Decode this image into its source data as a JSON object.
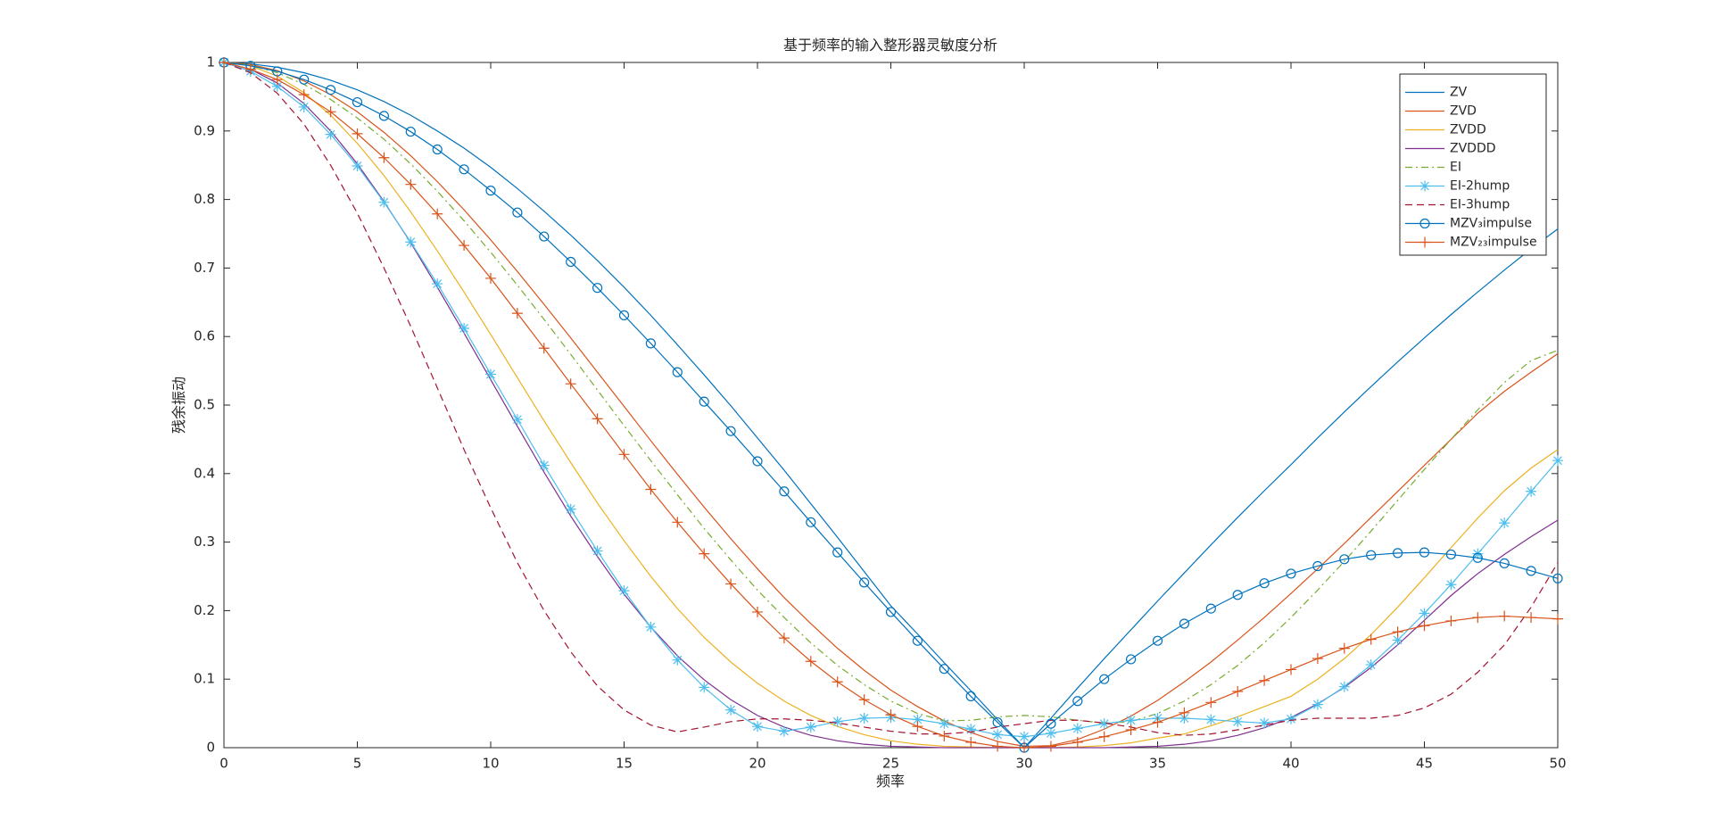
{
  "chart_data": {
    "type": "line",
    "title": "基于频率的输入整形器灵敏度分析",
    "xlabel": "频率",
    "ylabel": "残余振动",
    "x": [
      0,
      1,
      2,
      3,
      4,
      5,
      6,
      7,
      8,
      9,
      10,
      11,
      12,
      13,
      14,
      15,
      16,
      17,
      18,
      19,
      20,
      21,
      22,
      23,
      24,
      25,
      26,
      27,
      28,
      29,
      30,
      31,
      32,
      33,
      34,
      35,
      36,
      37,
      38,
      39,
      40,
      41,
      42,
      43,
      44,
      45,
      46,
      47,
      48,
      49,
      50
    ],
    "xlim": [
      0,
      50
    ],
    "xticks": [
      0,
      5,
      10,
      15,
      20,
      25,
      30,
      35,
      40,
      45,
      50
    ],
    "ylim": [
      0,
      1
    ],
    "yticks": [
      0,
      0.1,
      0.2,
      0.3,
      0.4,
      0.5,
      0.6,
      0.7,
      0.8,
      0.9,
      1
    ],
    "grid": false,
    "legend": "upper right",
    "series": [
      {
        "name": "ZV",
        "color": "#0072BD",
        "dash": "solid",
        "values": [
          1,
          0.998,
          0.993,
          0.985,
          0.974,
          0.96,
          0.943,
          0.923,
          0.9,
          0.875,
          0.847,
          0.816,
          0.783,
          0.748,
          0.711,
          0.672,
          0.631,
          0.588,
          0.544,
          0.499,
          0.452,
          0.405,
          0.356,
          0.307,
          0.257,
          0.207,
          0.166,
          0.124,
          0.083,
          0.041,
          0,
          0.043,
          0.087,
          0.13,
          0.172,
          0.214,
          0.255,
          0.296,
          0.336,
          0.375,
          0.413,
          0.452,
          0.49,
          0.527,
          0.563,
          0.598,
          0.632,
          0.665,
          0.697,
          0.728,
          0.757
        ]
      },
      {
        "name": "ZVD",
        "color": "#D95319",
        "dash": "solid",
        "values": [
          1,
          0.997,
          0.988,
          0.973,
          0.953,
          0.928,
          0.898,
          0.864,
          0.826,
          0.785,
          0.741,
          0.695,
          0.647,
          0.598,
          0.548,
          0.498,
          0.448,
          0.399,
          0.351,
          0.305,
          0.261,
          0.219,
          0.181,
          0.145,
          0.113,
          0.084,
          0.06,
          0.039,
          0.022,
          0.009,
          0.002,
          0.003,
          0.012,
          0.027,
          0.046,
          0.069,
          0.096,
          0.125,
          0.157,
          0.19,
          0.225,
          0.261,
          0.298,
          0.336,
          0.374,
          0.412,
          0.45,
          0.488,
          0.52,
          0.548,
          0.575
        ]
      },
      {
        "name": "ZVDD",
        "color": "#EDB120",
        "dash": "solid",
        "values": [
          1,
          0.995,
          0.98,
          0.956,
          0.923,
          0.882,
          0.835,
          0.782,
          0.725,
          0.665,
          0.603,
          0.54,
          0.477,
          0.416,
          0.357,
          0.302,
          0.25,
          0.203,
          0.161,
          0.125,
          0.094,
          0.068,
          0.047,
          0.031,
          0.019,
          0.01,
          0.005,
          0.002,
          0.001,
          0,
          0,
          0,
          0.001,
          0.003,
          0.007,
          0.014,
          0.02,
          0.032,
          0.045,
          0.06,
          0.075,
          0.1,
          0.13,
          0.165,
          0.205,
          0.248,
          0.292,
          0.335,
          0.375,
          0.408,
          0.435
        ]
      },
      {
        "name": "ZVDDD",
        "color": "#7E2F8E",
        "dash": "solid",
        "values": [
          1,
          0.99,
          0.97,
          0.94,
          0.9,
          0.852,
          0.797,
          0.737,
          0.672,
          0.605,
          0.537,
          0.469,
          0.402,
          0.338,
          0.279,
          0.224,
          0.176,
          0.134,
          0.099,
          0.07,
          0.047,
          0.03,
          0.018,
          0.01,
          0.005,
          0.002,
          0.001,
          0,
          0,
          0,
          0,
          0,
          0,
          0,
          0.001,
          0.002,
          0.005,
          0.01,
          0.018,
          0.029,
          0.044,
          0.064,
          0.088,
          0.117,
          0.15,
          0.186,
          0.222,
          0.254,
          0.282,
          0.308,
          0.332
        ]
      },
      {
        "name": "EI",
        "color": "#77AC30",
        "dash": "dashdot",
        "values": [
          1,
          0.996,
          0.985,
          0.968,
          0.946,
          0.919,
          0.888,
          0.852,
          0.812,
          0.769,
          0.723,
          0.675,
          0.625,
          0.574,
          0.522,
          0.47,
          0.419,
          0.369,
          0.32,
          0.274,
          0.23,
          0.19,
          0.153,
          0.12,
          0.092,
          0.068,
          0.05,
          0.039,
          0.04,
          0.045,
          0.047,
          0.045,
          0.04,
          0.036,
          0.038,
          0.05,
          0.068,
          0.092,
          0.12,
          0.153,
          0.19,
          0.23,
          0.272,
          0.316,
          0.361,
          0.406,
          0.45,
          0.493,
          0.533,
          0.565,
          0.58
        ]
      },
      {
        "name": "EI-2hump",
        "color": "#4DBEEE",
        "dash": "solid",
        "marker": "star",
        "values": [
          1,
          0.987,
          0.965,
          0.935,
          0.895,
          0.849,
          0.796,
          0.738,
          0.677,
          0.612,
          0.545,
          0.479,
          0.412,
          0.348,
          0.287,
          0.229,
          0.176,
          0.128,
          0.088,
          0.055,
          0.031,
          0.024,
          0.03,
          0.038,
          0.043,
          0.044,
          0.041,
          0.035,
          0.027,
          0.019,
          0.016,
          0.021,
          0.028,
          0.035,
          0.04,
          0.043,
          0.043,
          0.041,
          0.038,
          0.036,
          0.042,
          0.063,
          0.089,
          0.121,
          0.157,
          0.196,
          0.238,
          0.283,
          0.328,
          0.374,
          0.419
        ]
      },
      {
        "name": "EI-3hump",
        "color": "#A2142F",
        "dash": "dashed",
        "values": [
          1,
          0.985,
          0.955,
          0.91,
          0.85,
          0.78,
          0.7,
          0.615,
          0.525,
          0.435,
          0.35,
          0.27,
          0.2,
          0.14,
          0.09,
          0.055,
          0.033,
          0.023,
          0.03,
          0.038,
          0.042,
          0.042,
          0.04,
          0.036,
          0.03,
          0.024,
          0.02,
          0.02,
          0.023,
          0.03,
          0.035,
          0.04,
          0.04,
          0.036,
          0.03,
          0.022,
          0.018,
          0.02,
          0.026,
          0.033,
          0.04,
          0.043,
          0.043,
          0.043,
          0.047,
          0.058,
          0.078,
          0.11,
          0.15,
          0.205,
          0.27
        ]
      },
      {
        "name": "MZV₃impulse",
        "color": "#0072BD",
        "dash": "solid",
        "marker": "circle",
        "values": [
          1,
          0.995,
          0.987,
          0.975,
          0.96,
          0.942,
          0.922,
          0.899,
          0.873,
          0.844,
          0.813,
          0.781,
          0.746,
          0.709,
          0.671,
          0.631,
          0.59,
          0.548,
          0.505,
          0.462,
          0.418,
          0.374,
          0.329,
          0.285,
          0.241,
          0.198,
          0.156,
          0.115,
          0.075,
          0.037,
          0,
          0.035,
          0.068,
          0.1,
          0.129,
          0.156,
          0.181,
          0.203,
          0.223,
          0.24,
          0.254,
          0.265,
          0.275,
          0.281,
          0.284,
          0.285,
          0.282,
          0.277,
          0.269,
          0.258,
          0.247
        ]
      },
      {
        "name": "MZV₂₃impulse",
        "color": "#D95319",
        "dash": "solid",
        "marker": "plus",
        "values": [
          1,
          0.99,
          0.975,
          0.953,
          0.928,
          0.896,
          0.861,
          0.822,
          0.779,
          0.733,
          0.685,
          0.634,
          0.583,
          0.531,
          0.48,
          0.428,
          0.377,
          0.329,
          0.283,
          0.239,
          0.198,
          0.16,
          0.126,
          0.096,
          0.07,
          0.048,
          0.031,
          0.017,
          0.008,
          0.002,
          0,
          0.002,
          0.008,
          0.016,
          0.026,
          0.037,
          0.051,
          0.066,
          0.082,
          0.098,
          0.114,
          0.13,
          0.145,
          0.158,
          0.169,
          0.178,
          0.185,
          0.19,
          0.192,
          0.19,
          0.188
        ]
      }
    ]
  }
}
